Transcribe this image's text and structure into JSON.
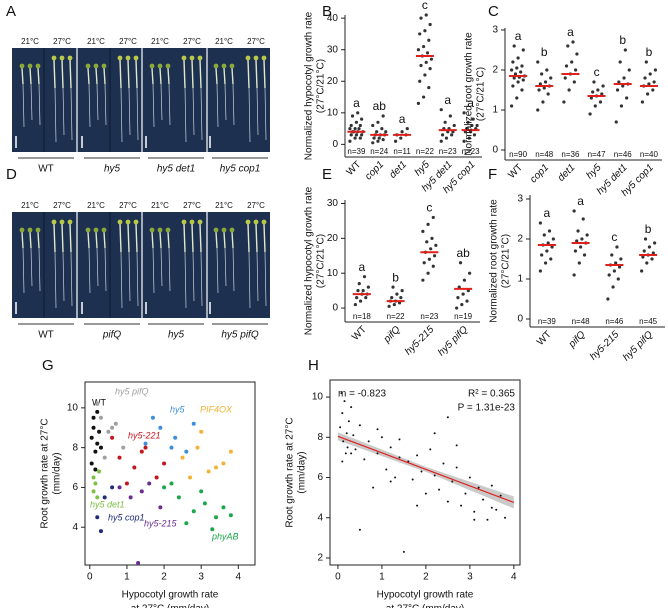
{
  "panel_labels": [
    "A",
    "B",
    "C",
    "D",
    "E",
    "F",
    "G",
    "H"
  ],
  "photos": [
    {
      "temps": [
        "21°C",
        "27°C",
        "21°C",
        "27°C",
        "21°C",
        "27°C",
        "21°C",
        "27°C"
      ],
      "genotypes": [
        "WT",
        "hy5",
        "hy5 det1",
        "hy5 cop1"
      ]
    },
    {
      "temps": [
        "21°C",
        "27°C",
        "21°C",
        "27°C",
        "21°C",
        "27°C",
        "21°C",
        "27°C"
      ],
      "genotypes": [
        "WT",
        "pifQ",
        "hy5",
        "hy5 pifQ"
      ]
    }
  ],
  "chart_data": [
    {
      "type": "strip",
      "y_label": [
        "Normalized hypocotyl growth rate",
        "(27°C/21°C)"
      ],
      "categories": [
        "WT",
        "cop1",
        "det1",
        "hy5",
        "hy5 det1",
        "hy5 cop1"
      ],
      "n_labels": [
        "n=39",
        "n=24",
        "n=11",
        "n=22",
        "n=23",
        "n=23"
      ],
      "letters": [
        "a",
        "ab",
        "a",
        "c",
        "a",
        "a"
      ],
      "medians": [
        4,
        3,
        3,
        28,
        4.5,
        4.5
      ],
      "median_color": "#e0201b",
      "color": "#333333",
      "values": [
        [
          1,
          2,
          2,
          3,
          3,
          3,
          4,
          4,
          4,
          4,
          5,
          5,
          5,
          6,
          6,
          7,
          8,
          9,
          10
        ],
        [
          0.5,
          1,
          1.5,
          2,
          2,
          3,
          3,
          3,
          4,
          4,
          5,
          6,
          7,
          9
        ],
        [
          1,
          2,
          3,
          3,
          4,
          5
        ],
        [
          13,
          15,
          18,
          20,
          22,
          24,
          25,
          26,
          27,
          28,
          29,
          30,
          31,
          33,
          35,
          36,
          38,
          40,
          41
        ],
        [
          1,
          2,
          3,
          3,
          4,
          4,
          5,
          5,
          6,
          7,
          9,
          11
        ],
        [
          1,
          2,
          3,
          4,
          4,
          5,
          5,
          6,
          6,
          7,
          8,
          10
        ]
      ],
      "ylim": [
        -4,
        41
      ],
      "yticks": [
        0,
        10,
        20,
        30,
        40
      ]
    },
    {
      "type": "strip",
      "y_label": [
        "Normalized root growth rate",
        "(27°C/21°C)"
      ],
      "categories": [
        "WT",
        "cop1",
        "det1",
        "hy5",
        "hy5 det1",
        "hy5 cop1"
      ],
      "n_labels": [
        "n=90",
        "n=48",
        "n=36",
        "n=47",
        "n=46",
        "n=40"
      ],
      "letters": [
        "a",
        "b",
        "a",
        "c",
        "b",
        "b"
      ],
      "medians": [
        1.85,
        1.6,
        1.9,
        1.35,
        1.65,
        1.6
      ],
      "median_color": "#e0201b",
      "color": "#333333",
      "values": [
        [
          1.1,
          1.3,
          1.5,
          1.6,
          1.7,
          1.75,
          1.8,
          1.82,
          1.85,
          1.9,
          1.95,
          2.0,
          2.05,
          2.1,
          2.2,
          2.3,
          2.5,
          2.6
        ],
        [
          1.0,
          1.2,
          1.4,
          1.5,
          1.55,
          1.6,
          1.65,
          1.7,
          1.8,
          1.9,
          2.0,
          2.2
        ],
        [
          1.2,
          1.5,
          1.7,
          1.8,
          1.9,
          2.0,
          2.1,
          2.2,
          2.4,
          2.6,
          2.7
        ],
        [
          0.9,
          1.1,
          1.2,
          1.3,
          1.35,
          1.4,
          1.45,
          1.5,
          1.6,
          1.7
        ],
        [
          0.7,
          1.1,
          1.3,
          1.5,
          1.6,
          1.65,
          1.7,
          1.8,
          2.0,
          2.2,
          2.5
        ],
        [
          1.2,
          1.4,
          1.5,
          1.6,
          1.65,
          1.7,
          1.8,
          1.9,
          2.0,
          2.2
        ]
      ],
      "ylim": [
        -0.25,
        3.05
      ],
      "yticks": [
        0,
        1,
        2,
        3
      ]
    },
    {
      "type": "strip",
      "y_label": [
        "Normalized hypocotyl growth rate",
        "(27°C/21°C)"
      ],
      "categories": [
        "WT",
        "pifQ",
        "hy5-215",
        "hy5 pifQ"
      ],
      "n_labels": [
        "n=18",
        "n=22",
        "n=23",
        "n=19"
      ],
      "letters": [
        "a",
        "b",
        "c",
        "ab"
      ],
      "medians": [
        4,
        2,
        16,
        5.5
      ],
      "median_color": "#e0201b",
      "color": "#333333",
      "values": [
        [
          1,
          2,
          3,
          3,
          4,
          4,
          5,
          5,
          6,
          7,
          9
        ],
        [
          0.5,
          1,
          1.5,
          2,
          2,
          3,
          3,
          4,
          5,
          6
        ],
        [
          8,
          10,
          12,
          13,
          14,
          15,
          16,
          17,
          18,
          19,
          20,
          22,
          24,
          26
        ],
        [
          0,
          1,
          2,
          3,
          4,
          5,
          6,
          8,
          10,
          13
        ]
      ],
      "ylim": [
        -4,
        31
      ],
      "yticks": [
        0,
        10,
        20,
        30
      ]
    },
    {
      "type": "strip",
      "y_label": [
        "Normalized root growth rate",
        "(27°C/21°C)"
      ],
      "categories": [
        "WT",
        "pifQ",
        "hy5-215",
        "hy5 pifQ"
      ],
      "n_labels": [
        "n=39",
        "n=48",
        "n=46",
        "n=45"
      ],
      "letters": [
        "a",
        "a",
        "c",
        "b"
      ],
      "medians": [
        1.85,
        1.9,
        1.35,
        1.6
      ],
      "median_color": "#e0201b",
      "color": "#333333",
      "values": [
        [
          1.2,
          1.4,
          1.5,
          1.6,
          1.7,
          1.8,
          1.85,
          1.9,
          2.0,
          2.1,
          2.2,
          2.4
        ],
        [
          1.1,
          1.4,
          1.6,
          1.7,
          1.8,
          1.9,
          1.95,
          2.0,
          2.1,
          2.2,
          2.5,
          2.7
        ],
        [
          0.5,
          0.8,
          1.0,
          1.1,
          1.2,
          1.3,
          1.35,
          1.4,
          1.5,
          1.6,
          1.8
        ],
        [
          1.2,
          1.4,
          1.5,
          1.55,
          1.6,
          1.65,
          1.7,
          1.8,
          1.9,
          2.0
        ]
      ],
      "ylim": [
        -0.2,
        3.1
      ],
      "yticks": [
        0,
        1,
        2,
        3
      ]
    },
    {
      "type": "scatter",
      "y_label": [
        "Root growth rate at 27°C",
        "(mm/day)"
      ],
      "x_label": [
        "Hypocotyl growth rate",
        "at 27°C (mm/day)"
      ],
      "xlim": [
        -0.13,
        4.45
      ],
      "xticks": [
        0,
        1,
        2,
        3,
        4
      ],
      "ylim": [
        2.1,
        11.3
      ],
      "yticks": [
        4,
        6,
        8,
        10
      ],
      "series": [
        {
          "name": "WT",
          "color": "#111111",
          "x": [
            0.05,
            0.1,
            0.15,
            0.2,
            0.1,
            0.05,
            0.25,
            0.15,
            0.3,
            0.2
          ],
          "y": [
            8.5,
            9,
            7.8,
            8.2,
            9.5,
            7.2,
            8.8,
            6.9,
            8,
            9.8
          ]
        },
        {
          "name": "hy5 pifQ",
          "color": "#a0a0a0",
          "x": [
            0.3,
            0.5,
            0.7,
            0.2,
            0.9,
            0.4,
            0.6
          ],
          "y": [
            9.5,
            8.8,
            9.2,
            10.2,
            8,
            7.5,
            9
          ]
        },
        {
          "name": "hy5-221",
          "color": "#c4161c",
          "x": [
            0.8,
            1.2,
            1.5,
            1.8,
            1.0,
            1.4,
            2.0,
            0.6
          ],
          "y": [
            7.5,
            7,
            8,
            6.5,
            6.2,
            7.8,
            7.2,
            8.5
          ]
        },
        {
          "name": "hy5",
          "color": "#3b8fd9",
          "x": [
            1.5,
            1.9,
            2.3,
            2.6,
            1.7,
            2.2,
            2.8
          ],
          "y": [
            8.2,
            9,
            8.5,
            7.8,
            9.5,
            8,
            9.2
          ]
        },
        {
          "name": "PIF4OX",
          "color": "#f5b335",
          "x": [
            2.5,
            2.9,
            3.2,
            3.6,
            3.8,
            3.0,
            3.4,
            2.7
          ],
          "y": [
            7.5,
            8,
            6.8,
            7.2,
            7.8,
            8.8,
            7,
            6.5
          ]
        },
        {
          "name": "hy5 det1",
          "color": "#7cc242",
          "x": [
            0.1,
            0.15,
            0.2,
            0.1,
            0.25
          ],
          "y": [
            5.8,
            6.2,
            5.5,
            6.5,
            6.8
          ]
        },
        {
          "name": "hy5 cop1",
          "color": "#1f2a7a",
          "x": [
            0.2,
            0.4,
            0.3,
            0.6
          ],
          "y": [
            4.5,
            5.5,
            3.8,
            6
          ]
        },
        {
          "name": "hy5-215",
          "color": "#6a2c91",
          "x": [
            0.8,
            1.1,
            1.4,
            1.6,
            1.3,
            1.9
          ],
          "y": [
            6,
            5.5,
            5.8,
            6.2,
            2.2,
            5
          ]
        },
        {
          "name": "phyAB",
          "color": "#1aa64a",
          "x": [
            2.0,
            2.4,
            2.8,
            3.1,
            3.4,
            3.6,
            2.2,
            2.6,
            3.0,
            3.8,
            3.3
          ],
          "y": [
            6,
            5.5,
            4.8,
            5.2,
            4.5,
            5,
            6.2,
            4.2,
            5.8,
            4.6,
            3.9
          ]
        }
      ]
    },
    {
      "type": "regression",
      "y_label": [
        "Root growth rate at 27°C",
        "(mm/day)"
      ],
      "x_label": [
        "Hypocotyl growth rate",
        "at 27°C (mm/day)"
      ],
      "annotations": [
        "m = -0.823",
        "R² = 0.365",
        "P = 1.31e-23"
      ],
      "xlim": [
        -0.18,
        4.14
      ],
      "xticks": [
        0,
        1,
        2,
        3,
        4
      ],
      "ylim": [
        1.65,
        10.85
      ],
      "yticks": [
        2,
        4,
        6,
        8,
        10
      ],
      "color": "#111111",
      "fit_color": "#e0201b",
      "fit_line": {
        "x": [
          0,
          4
        ],
        "y": [
          8.05,
          4.76
        ]
      },
      "x": [
        0.05,
        0.1,
        0.12,
        0.15,
        0.2,
        0.08,
        0.18,
        0.25,
        0.3,
        0.1,
        0.22,
        0.35,
        0.4,
        0.5,
        0.6,
        0.7,
        0.8,
        0.9,
        1.0,
        1.1,
        1.2,
        1.3,
        1.4,
        1.5,
        1.6,
        1.7,
        1.8,
        1.9,
        2.0,
        2.1,
        2.2,
        2.3,
        2.4,
        2.5,
        2.6,
        2.7,
        2.8,
        2.9,
        3.0,
        3.1,
        3.2,
        3.3,
        3.4,
        3.5,
        3.6,
        3.7,
        3.8,
        0.5,
        0.9,
        1.4,
        1.8,
        2.2,
        2.7,
        3.1,
        3.5,
        0.3,
        1.2,
        2.5
      ],
      "y": [
        8.5,
        9.2,
        7.8,
        9.8,
        8.2,
        10.2,
        7.2,
        8.8,
        9.5,
        6.8,
        7.5,
        8.1,
        7.4,
        8.6,
        6.9,
        7.8,
        5.5,
        7.2,
        8.0,
        6.4,
        7.5,
        6.0,
        7.9,
        2.3,
        6.8,
        5.9,
        7.1,
        6.3,
        5.2,
        7.4,
        6.1,
        5.4,
        6.7,
        4.8,
        5.8,
        6.5,
        4.6,
        5.2,
        6.0,
        4.3,
        5.5,
        4.9,
        3.9,
        5.6,
        4.4,
        5.1,
        4.0,
        3.4,
        8.4,
        7.0,
        4.6,
        8.2,
        7.6,
        3.9,
        4.5,
        7.2,
        5.8,
        9.0
      ]
    }
  ]
}
